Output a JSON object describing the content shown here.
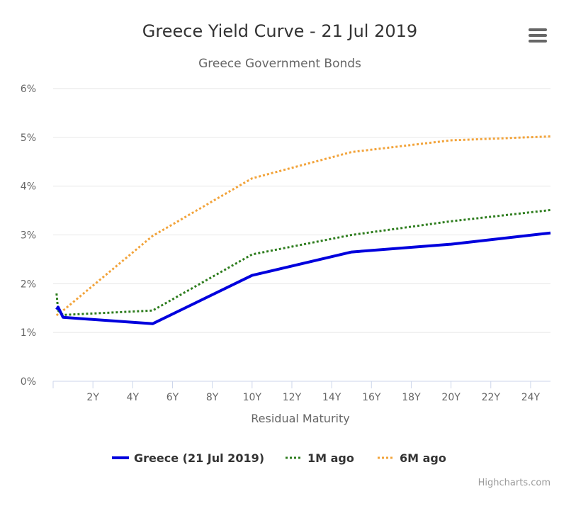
{
  "menu": {
    "icon": "hamburger-menu-icon"
  },
  "credits": "Highcharts.com",
  "chart_data": {
    "type": "line",
    "title": "Greece Yield Curve - 21 Jul 2019",
    "subtitle": "Greece Government Bonds",
    "xlabel": "Residual Maturity",
    "ylabel": "",
    "xlim": [
      0,
      25
    ],
    "ylim": [
      0,
      6
    ],
    "x_ticks": [
      2,
      4,
      6,
      8,
      10,
      12,
      14,
      16,
      18,
      20,
      22,
      24
    ],
    "x_tick_labels": [
      "2Y",
      "4Y",
      "6Y",
      "8Y",
      "10Y",
      "12Y",
      "14Y",
      "16Y",
      "18Y",
      "20Y",
      "22Y",
      "24Y"
    ],
    "y_ticks": [
      0,
      1,
      2,
      3,
      4,
      5,
      6
    ],
    "y_tick_labels": [
      "0%",
      "1%",
      "2%",
      "3%",
      "4%",
      "5%",
      "6%"
    ],
    "grid": true,
    "legend": "bottom",
    "series": [
      {
        "name": "Greece (21 Jul 2019)",
        "color": "#0000dd",
        "style": "solid",
        "x": [
          0.17,
          0.25,
          0.5,
          5,
          10,
          15,
          20,
          25
        ],
        "y": [
          1.47,
          1.52,
          1.31,
          1.18,
          2.17,
          2.65,
          2.81,
          3.04
        ]
      },
      {
        "name": "1M ago",
        "color": "#2e7d1e",
        "style": "dotted",
        "x": [
          0.17,
          0.25,
          0.5,
          5,
          10,
          15,
          20,
          25
        ],
        "y": [
          1.8,
          1.45,
          1.36,
          1.45,
          2.6,
          3.0,
          3.28,
          3.51
        ]
      },
      {
        "name": "6M ago",
        "color": "#f2a33a",
        "style": "dotted",
        "x": [
          0.17,
          0.25,
          0.5,
          5,
          10,
          15,
          20,
          25
        ],
        "y": [
          1.35,
          1.38,
          1.45,
          2.98,
          4.16,
          4.7,
          4.94,
          5.02
        ]
      }
    ]
  }
}
